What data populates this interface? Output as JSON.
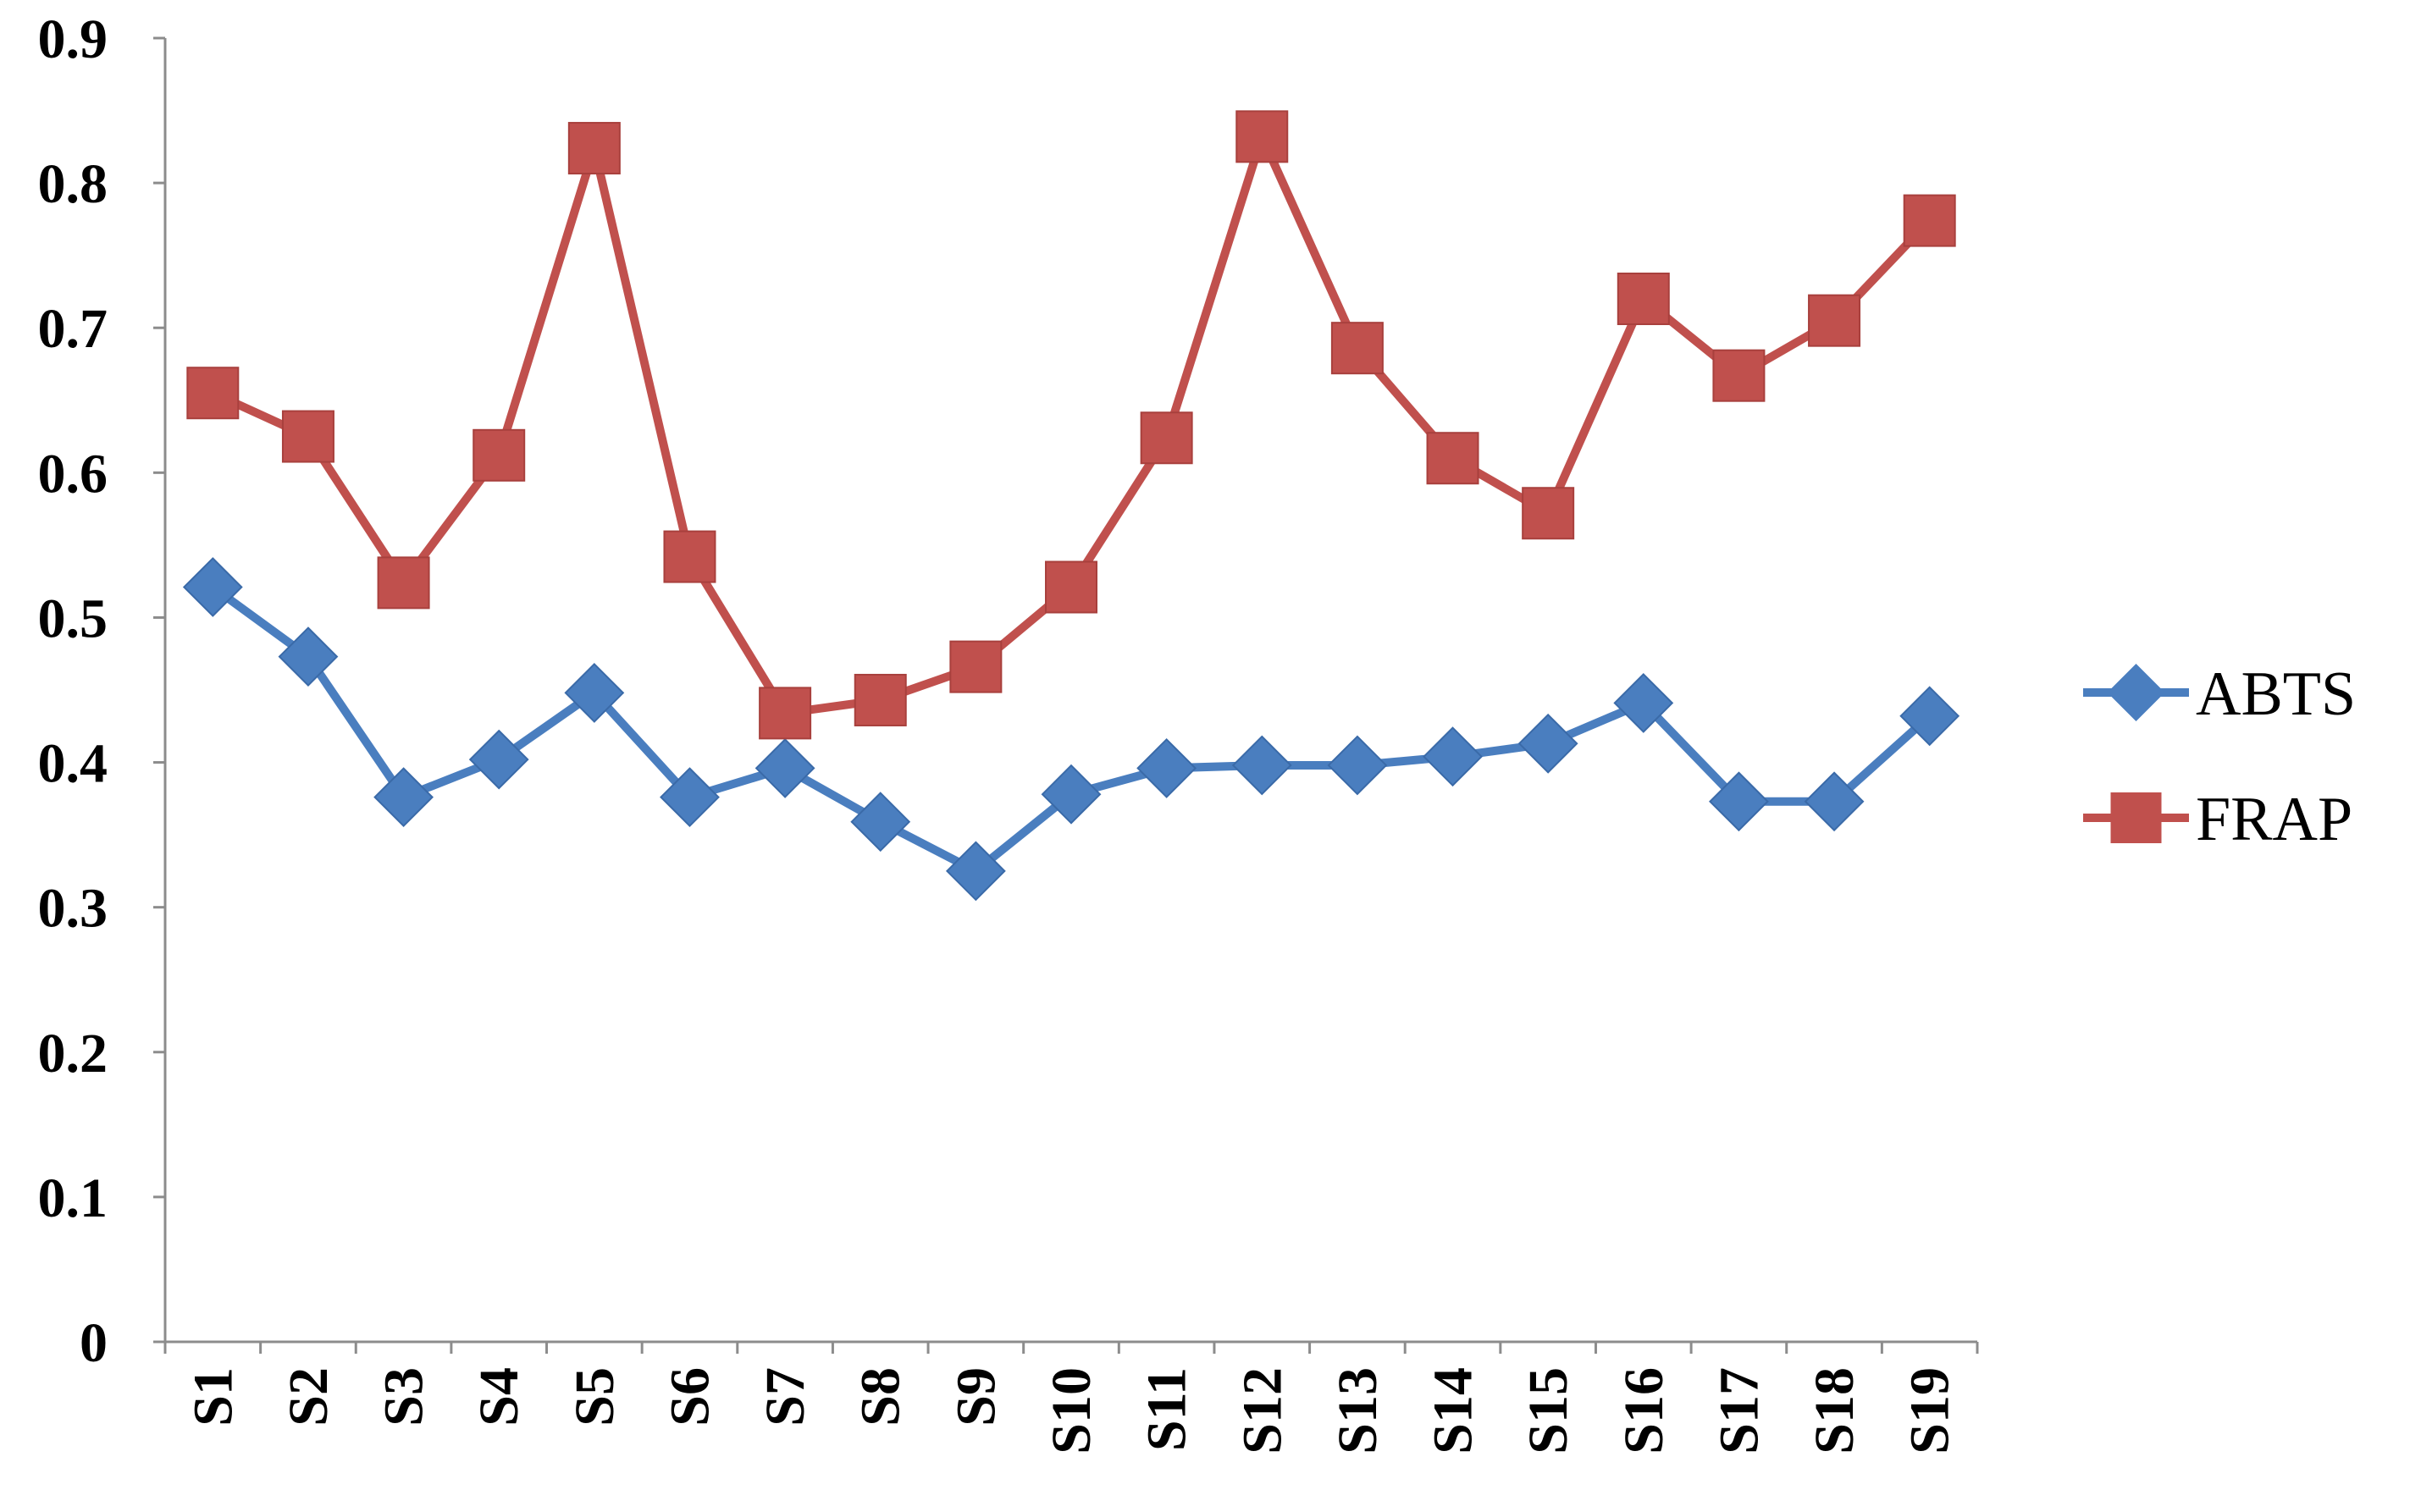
{
  "chart_data": {
    "type": "line",
    "title": "",
    "xlabel": "",
    "ylabel": "",
    "categories": [
      "S1",
      "S2",
      "S3",
      "S4",
      "S5",
      "S6",
      "S7",
      "S8",
      "S9",
      "S10",
      "S11",
      "S12",
      "S13",
      "S14",
      "S15",
      "S16",
      "S17",
      "S18",
      "S19"
    ],
    "ylim": [
      0,
      0.9
    ],
    "yticks": [
      "0",
      "0.1",
      "0.2",
      "0.3",
      "0.4",
      "0.5",
      "0.6",
      "0.7",
      "0.8",
      "0.9"
    ],
    "grid": false,
    "legend_position": "right",
    "series": [
      {
        "name": "ABTS",
        "color": "#4a7ebf",
        "marker": "diamond",
        "values": [
          0.521,
          0.473,
          0.376,
          0.402,
          0.448,
          0.376,
          0.396,
          0.359,
          0.325,
          0.378,
          0.396,
          0.398,
          0.398,
          0.404,
          0.413,
          0.441,
          0.373,
          0.373,
          0.432
        ]
      },
      {
        "name": "FRAP",
        "color": "#c0504d",
        "marker": "square",
        "values": [
          0.655,
          0.625,
          0.524,
          0.612,
          0.824,
          0.542,
          0.434,
          0.443,
          0.466,
          0.521,
          0.624,
          0.832,
          0.686,
          0.61,
          0.572,
          0.72,
          0.667,
          0.705,
          0.774
        ]
      }
    ]
  }
}
